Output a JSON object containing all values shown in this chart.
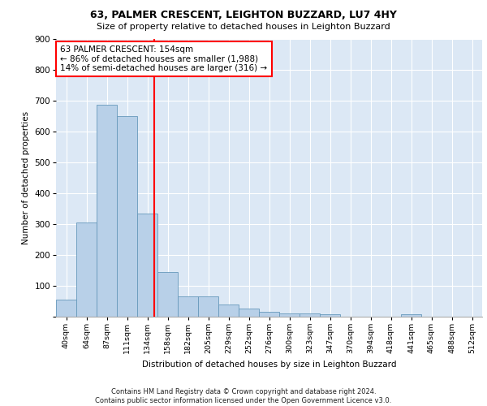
{
  "title1": "63, PALMER CRESCENT, LEIGHTON BUZZARD, LU7 4HY",
  "title2": "Size of property relative to detached houses in Leighton Buzzard",
  "xlabel": "Distribution of detached houses by size in Leighton Buzzard",
  "ylabel": "Number of detached properties",
  "bar_labels": [
    "40sqm",
    "64sqm",
    "87sqm",
    "111sqm",
    "134sqm",
    "158sqm",
    "182sqm",
    "205sqm",
    "229sqm",
    "252sqm",
    "276sqm",
    "300sqm",
    "323sqm",
    "347sqm",
    "370sqm",
    "394sqm",
    "418sqm",
    "441sqm",
    "465sqm",
    "488sqm",
    "512sqm"
  ],
  "bar_heights": [
    55,
    305,
    685,
    650,
    335,
    145,
    65,
    65,
    40,
    25,
    15,
    10,
    10,
    8,
    0,
    0,
    0,
    8,
    0,
    0,
    0
  ],
  "bar_color": "#b8d0e8",
  "bar_edge_color": "#6699bb",
  "vline_color": "red",
  "ylim": [
    0,
    900
  ],
  "yticks": [
    0,
    100,
    200,
    300,
    400,
    500,
    600,
    700,
    800,
    900
  ],
  "annotation_text": "63 PALMER CRESCENT: 154sqm\n← 86% of detached houses are smaller (1,988)\n14% of semi-detached houses are larger (316) →",
  "footer_text": "Contains HM Land Registry data © Crown copyright and database right 2024.\nContains public sector information licensed under the Open Government Licence v3.0.",
  "background_color": "#dce8f5",
  "fig_background": "#ffffff"
}
